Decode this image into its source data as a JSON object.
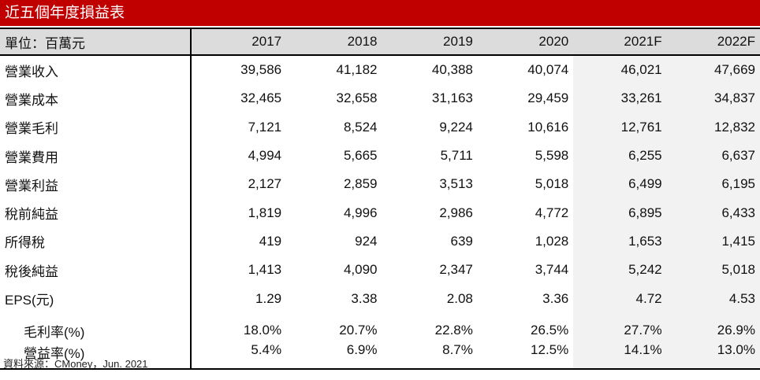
{
  "title": "近五個年度損益表",
  "header": {
    "label": "單位：百萬元",
    "years": [
      "2017",
      "2018",
      "2019",
      "2020",
      "2021F",
      "2022F"
    ]
  },
  "rows": [
    {
      "label": "營業收入",
      "values": [
        "39,586",
        "41,182",
        "40,388",
        "40,074",
        "46,021",
        "47,669"
      ]
    },
    {
      "label": "營業成本",
      "values": [
        "32,465",
        "32,658",
        "31,163",
        "29,459",
        "33,261",
        "34,837"
      ]
    },
    {
      "label": "營業毛利",
      "values": [
        "7,121",
        "8,524",
        "9,224",
        "10,616",
        "12,761",
        "12,832"
      ]
    },
    {
      "label": "營業費用",
      "values": [
        "4,994",
        "5,665",
        "5,711",
        "5,598",
        "6,255",
        "6,637"
      ]
    },
    {
      "label": "營業利益",
      "values": [
        "2,127",
        "2,859",
        "3,513",
        "5,018",
        "6,499",
        "6,195"
      ]
    },
    {
      "label": "稅前純益",
      "values": [
        "1,819",
        "4,996",
        "2,986",
        "4,772",
        "6,895",
        "6,433"
      ]
    },
    {
      "label": "所得稅",
      "values": [
        "419",
        "924",
        "639",
        "1,028",
        "1,653",
        "1,415"
      ]
    },
    {
      "label": "稅後純益",
      "values": [
        "1,413",
        "4,090",
        "2,347",
        "3,744",
        "5,242",
        "5,018"
      ]
    },
    {
      "label": "EPS(元)",
      "values": [
        "1.29",
        "3.38",
        "2.08",
        "3.36",
        "4.72",
        "4.53"
      ]
    }
  ],
  "ratios": [
    {
      "label": "毛利率(%)",
      "values": [
        "18.0%",
        "20.7%",
        "22.8%",
        "26.5%",
        "27.7%",
        "26.9%"
      ]
    },
    {
      "label": "營益率(%)",
      "values": [
        "5.4%",
        "6.9%",
        "8.7%",
        "12.5%",
        "14.1%",
        "13.0%"
      ]
    }
  ],
  "source": "資料來源：CMoney，Jun. 2021",
  "colors": {
    "title_bg": "#c00000",
    "header_bg": "#dcdcdc",
    "forecast_bg": "#f2f2f2"
  }
}
